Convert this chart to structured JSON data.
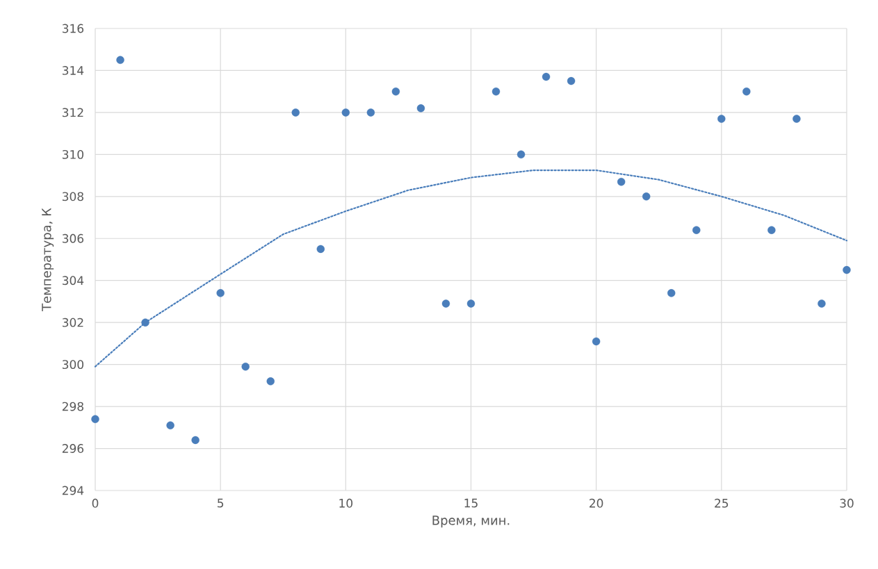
{
  "chart_data": {
    "type": "scatter",
    "xlabel": "Время, мин.",
    "ylabel": "Температура, К",
    "xlim": [
      0,
      30
    ],
    "xticks": [
      0,
      5,
      10,
      15,
      20,
      25,
      30
    ],
    "ylim": [
      294,
      316
    ],
    "yticks": [
      294,
      296,
      298,
      300,
      302,
      304,
      306,
      308,
      310,
      312,
      314,
      316
    ],
    "grid": true,
    "marker": "circle",
    "series": [
      {
        "color": "#4a7ebb",
        "x": [
          0,
          1,
          2,
          3,
          4,
          5,
          6,
          7,
          8,
          9,
          10,
          11,
          12,
          13,
          14,
          15,
          16,
          17,
          18,
          19,
          20,
          21,
          22,
          23,
          24,
          25,
          26,
          27,
          28,
          29,
          30
        ],
        "values": [
          297.4,
          314.5,
          302.0,
          297.1,
          296.4,
          303.4,
          299.9,
          299.2,
          312.0,
          305.5,
          312.0,
          312.0,
          313.0,
          312.2,
          302.9,
          302.9,
          313.0,
          310.0,
          313.7,
          313.5,
          301.1,
          308.7,
          308.0,
          303.4,
          306.4,
          311.7,
          313.0,
          306.4,
          311.7,
          302.9,
          304.5
        ]
      },
      {
        "type": "line",
        "color": "#4a7ebb",
        "line_style": "dotted",
        "marker": "none",
        "x": [
          0,
          2,
          5,
          7.5,
          10,
          12.5,
          15,
          17.5,
          20,
          22.5,
          25,
          27.5,
          30
        ],
        "values": [
          299.9,
          302.0,
          304.3,
          306.2,
          307.3,
          308.3,
          308.9,
          309.25,
          309.25,
          308.8,
          308.0,
          307.1,
          305.9
        ]
      }
    ]
  }
}
